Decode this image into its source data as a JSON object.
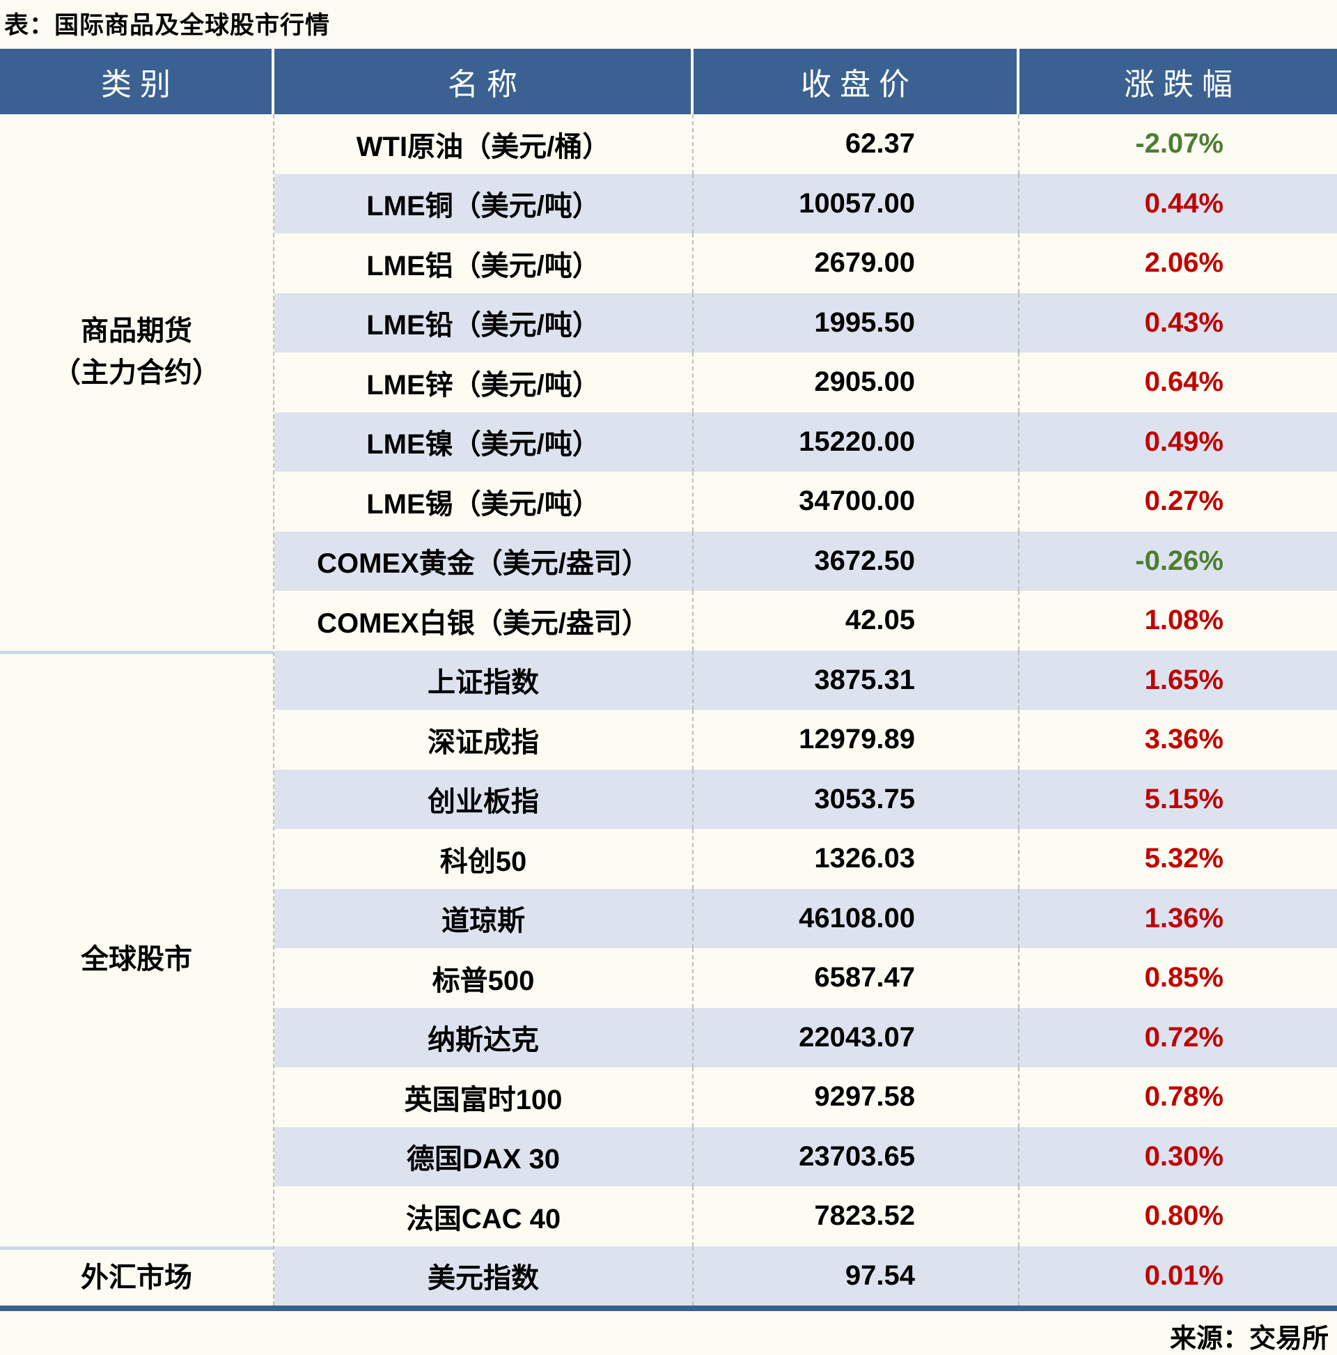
{
  "chart_data": {
    "type": "table",
    "title": "表：国际商品及全球股市行情",
    "source": "来源：交易所",
    "columns": [
      "类别",
      "名称",
      "收盘价",
      "涨跌幅"
    ],
    "rows": [
      [
        "商品期货（主力合约）",
        "WTI原油（美元/桶）",
        "62.37",
        "-2.07%"
      ],
      [
        "商品期货（主力合约）",
        "LME铜（美元/吨）",
        "10057.00",
        "0.44%"
      ],
      [
        "商品期货（主力合约）",
        "LME铝（美元/吨）",
        "2679.00",
        "2.06%"
      ],
      [
        "商品期货（主力合约）",
        "LME铅（美元/吨）",
        "1995.50",
        "0.43%"
      ],
      [
        "商品期货（主力合约）",
        "LME锌（美元/吨）",
        "2905.00",
        "0.64%"
      ],
      [
        "商品期货（主力合约）",
        "LME镍（美元/吨）",
        "15220.00",
        "0.49%"
      ],
      [
        "商品期货（主力合约）",
        "LME锡（美元/吨）",
        "34700.00",
        "0.27%"
      ],
      [
        "商品期货（主力合约）",
        "COMEX黄金（美元/盎司）",
        "3672.50",
        "-0.26%"
      ],
      [
        "商品期货（主力合约）",
        "COMEX白银（美元/盎司）",
        "42.05",
        "1.08%"
      ],
      [
        "全球股市",
        "上证指数",
        "3875.31",
        "1.65%"
      ],
      [
        "全球股市",
        "深证成指",
        "12979.89",
        "3.36%"
      ],
      [
        "全球股市",
        "创业板指",
        "3053.75",
        "5.15%"
      ],
      [
        "全球股市",
        "科创50",
        "1326.03",
        "5.32%"
      ],
      [
        "全球股市",
        "道琼斯",
        "46108.00",
        "1.36%"
      ],
      [
        "全球股市",
        "标普500",
        "6587.47",
        "0.85%"
      ],
      [
        "全球股市",
        "纳斯达克",
        "22043.07",
        "0.72%"
      ],
      [
        "全球股市",
        "英国富时100",
        "9297.58",
        "0.78%"
      ],
      [
        "全球股市",
        "德国DAX 30",
        "23703.65",
        "0.30%"
      ],
      [
        "全球股市",
        "法国CAC 40",
        "7823.52",
        "0.80%"
      ],
      [
        "外汇市场",
        "美元指数",
        "97.54",
        "0.01%"
      ]
    ],
    "legend_position": "none",
    "grid": "row-stripes",
    "colors": {
      "header_background": "#3a6191",
      "stripe_row": "#dce3ef",
      "positive_change": "#c00000",
      "negative_change": "#4e7d32",
      "bottom_border": "#38618e"
    }
  },
  "groups": [
    {
      "lines": [
        "商品期货",
        "（主力合约）"
      ],
      "span": 9
    },
    {
      "lines": [
        "全球股市"
      ],
      "span": 10
    },
    {
      "lines": [
        "外汇市场"
      ],
      "span": 1
    }
  ]
}
